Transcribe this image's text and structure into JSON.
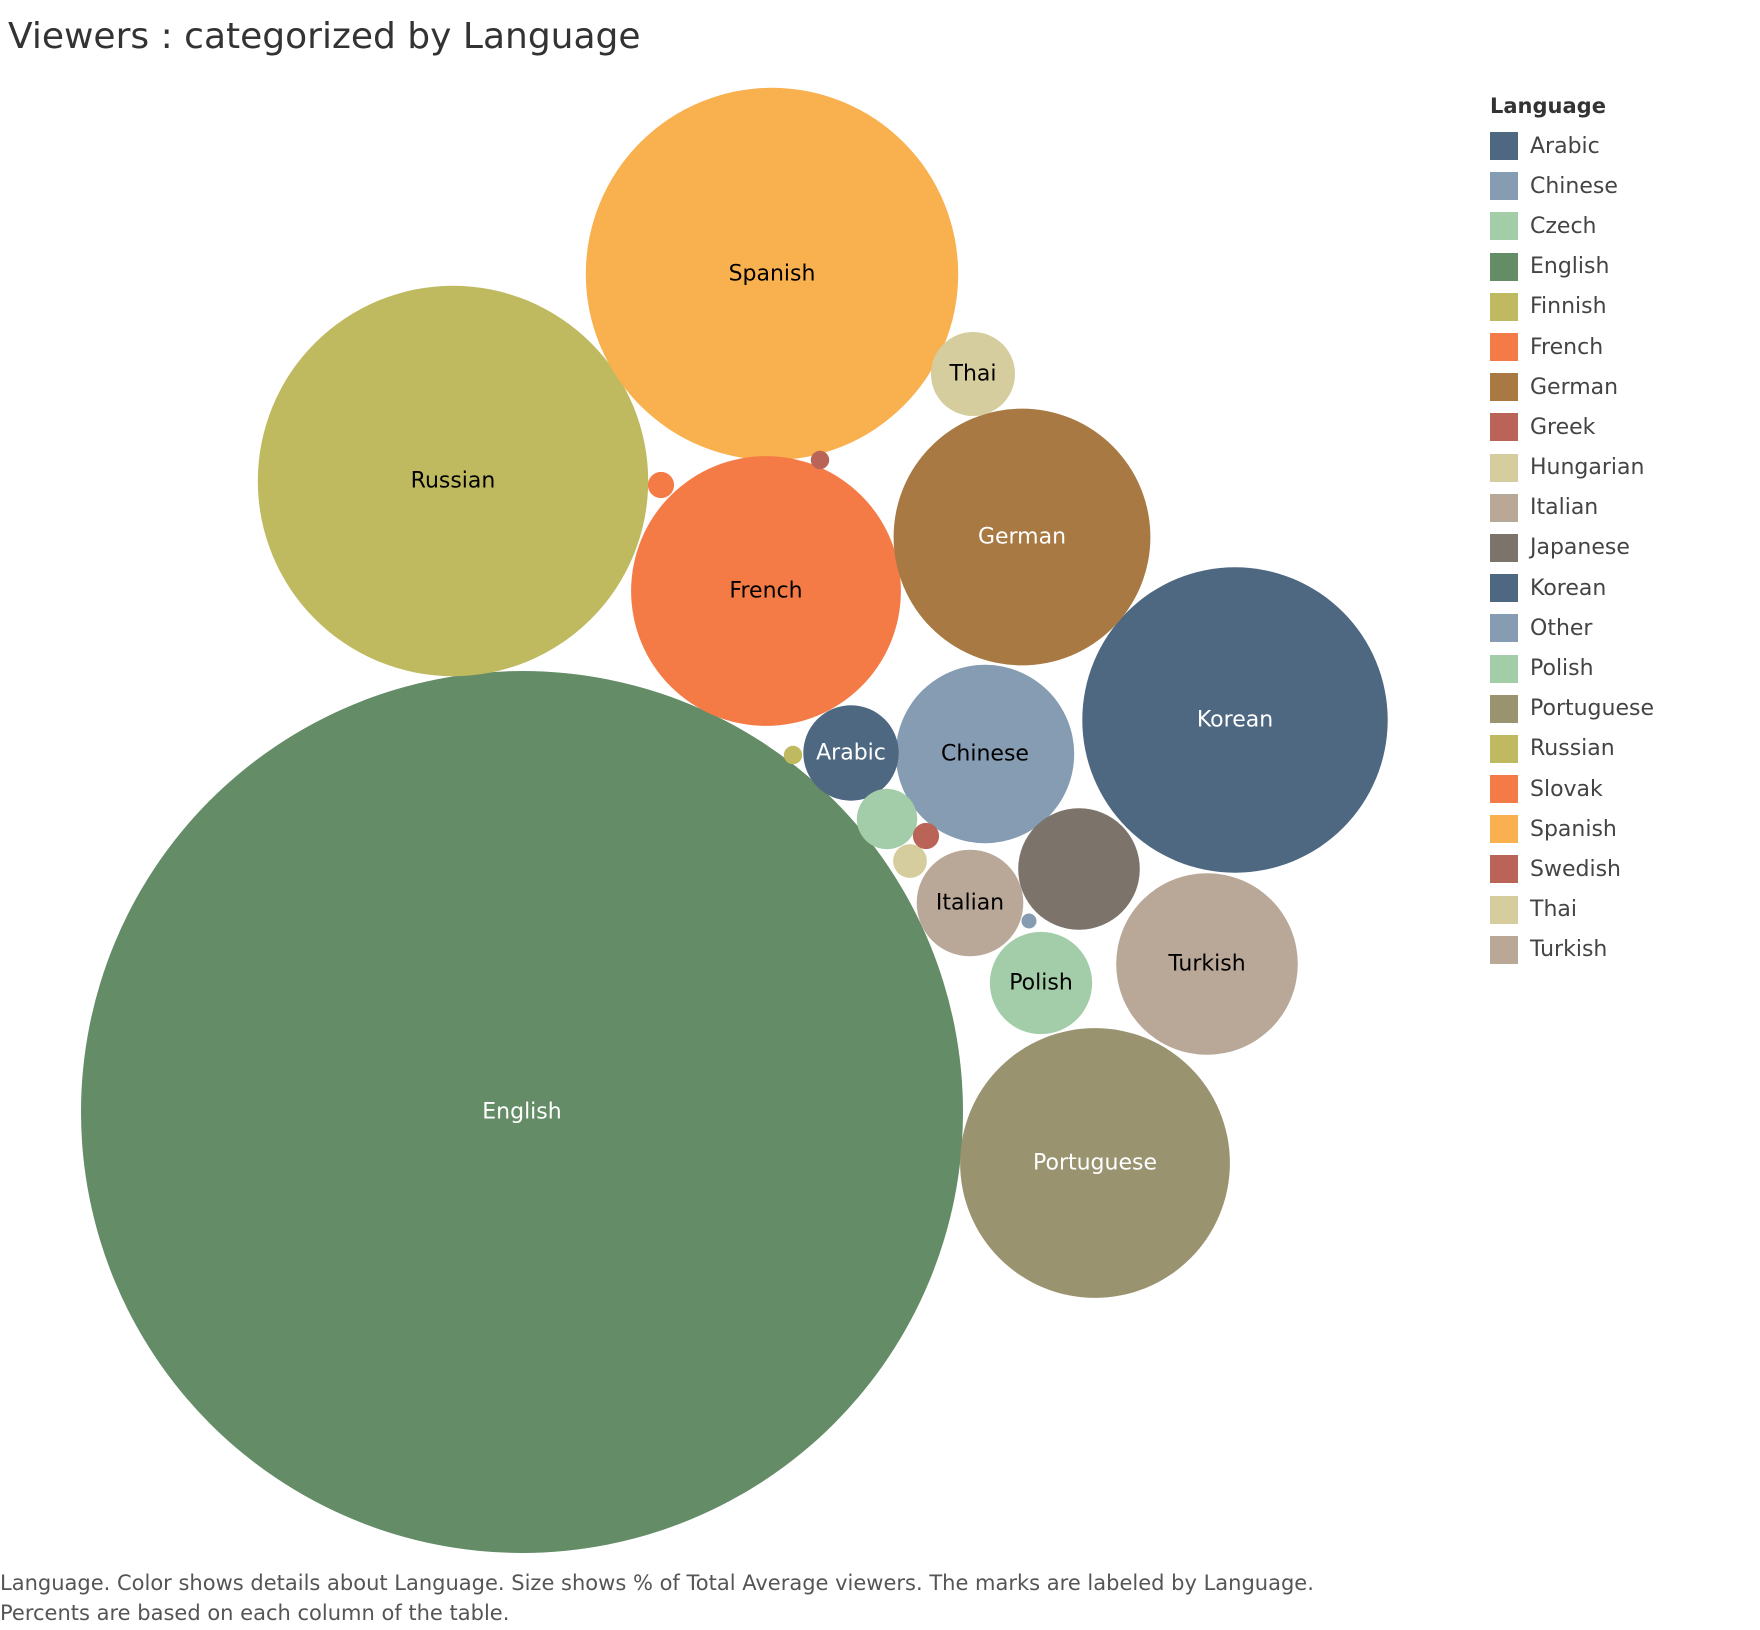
{
  "chart_data": {
    "type": "bubble",
    "title": "Viewers : categorized by Language",
    "size_measure": "% of Total Average viewers",
    "legend": {
      "title": "Language",
      "placement": "right",
      "items": [
        {
          "name": "Arabic",
          "color": "#4e6882"
        },
        {
          "name": "Chinese",
          "color": "#859cb2"
        },
        {
          "name": "Czech",
          "color": "#a2cda8"
        },
        {
          "name": "English",
          "color": "#638c67"
        },
        {
          "name": "Finnish",
          "color": "#bfba5f"
        },
        {
          "name": "French",
          "color": "#f47b45"
        },
        {
          "name": "German",
          "color": "#a87942"
        },
        {
          "name": "Greek",
          "color": "#b96457"
        },
        {
          "name": "Hungarian",
          "color": "#d6cd9e"
        },
        {
          "name": "Italian",
          "color": "#b9a898"
        },
        {
          "name": "Japanese",
          "color": "#7c736b"
        },
        {
          "name": "Korean",
          "color": "#4e6882"
        },
        {
          "name": "Other",
          "color": "#859cb2"
        },
        {
          "name": "Polish",
          "color": "#a2cda8"
        },
        {
          "name": "Portuguese",
          "color": "#9a9370"
        },
        {
          "name": "Russian",
          "color": "#bfba5f"
        },
        {
          "name": "Slovak",
          "color": "#f47b45"
        },
        {
          "name": "Spanish",
          "color": "#f9b04f"
        },
        {
          "name": "Swedish",
          "color": "#b96457"
        },
        {
          "name": "Thai",
          "color": "#d6cd9e"
        },
        {
          "name": "Turkish",
          "color": "#b9a898"
        }
      ]
    },
    "bubbles": [
      {
        "name": "English",
        "value": 34.2,
        "label": "English",
        "color": "#638c67",
        "label_color": "#ffffff"
      },
      {
        "name": "Russian",
        "value": 6.7,
        "label": "Russian",
        "color": "#bfba5f",
        "label_color": "#000000"
      },
      {
        "name": "Spanish",
        "value": 6.1,
        "label": "Spanish",
        "color": "#f9b04f",
        "label_color": "#000000"
      },
      {
        "name": "Portuguese",
        "value": 3.2,
        "label": "Portuguese",
        "color": "#9a9370",
        "label_color": "#ffffff"
      },
      {
        "name": "Korean",
        "value": 4.1,
        "label": "Korean",
        "color": "#4e6882",
        "label_color": "#ffffff"
      },
      {
        "name": "French",
        "value": 3.2,
        "label": "French",
        "color": "#f47b45",
        "label_color": "#000000"
      },
      {
        "name": "German",
        "value": 2.9,
        "label": "German",
        "color": "#a87942",
        "label_color": "#ffffff"
      },
      {
        "name": "Chinese",
        "value": 1.4,
        "label": "Chinese",
        "color": "#859cb2",
        "label_color": "#000000"
      },
      {
        "name": "Turkish",
        "value": 1.45,
        "label": "Turkish",
        "color": "#b9a898",
        "label_color": "#000000"
      },
      {
        "name": "Japanese",
        "value": 0.65,
        "label": "",
        "color": "#7c736b",
        "label_color": "#ffffff"
      },
      {
        "name": "Italian",
        "value": 0.5,
        "label": "Italian",
        "color": "#b9a898",
        "label_color": "#000000"
      },
      {
        "name": "Polish",
        "value": 0.46,
        "label": "Polish",
        "color": "#a2cda8",
        "label_color": "#000000"
      },
      {
        "name": "Arabic",
        "value": 0.4,
        "label": "Arabic",
        "color": "#4e6882",
        "label_color": "#ffffff"
      },
      {
        "name": "Thai",
        "value": 0.31,
        "label": "Thai",
        "color": "#d6cd9e",
        "label_color": "#000000"
      },
      {
        "name": "Czech",
        "value": 0.16,
        "label": "",
        "color": "#a2cda8",
        "label_color": "#000000"
      },
      {
        "name": "Hungarian",
        "value": 0.05,
        "label": "",
        "color": "#d6cd9e",
        "label_color": "#000000"
      },
      {
        "name": "Swedish",
        "value": 0.03,
        "label": "",
        "color": "#b96457",
        "label_color": "#000000"
      },
      {
        "name": "Slovak",
        "value": 0.03,
        "label": "",
        "color": "#f47b45",
        "label_color": "#000000"
      },
      {
        "name": "Greek",
        "value": 0.015,
        "label": "",
        "color": "#b96457",
        "label_color": "#000000"
      },
      {
        "name": "Finnish",
        "value": 0.015,
        "label": "",
        "color": "#bfba5f",
        "label_color": "#000000"
      },
      {
        "name": "Other",
        "value": 0.01,
        "label": "",
        "color": "#859cb2",
        "label_color": "#000000"
      }
    ]
  },
  "caption": {
    "line1": "Language.  Color shows details about Language.  Size shows % of Total Average viewers.  The marks are labeled by Language.",
    "line2": "Percents are based on each column of the table."
  }
}
